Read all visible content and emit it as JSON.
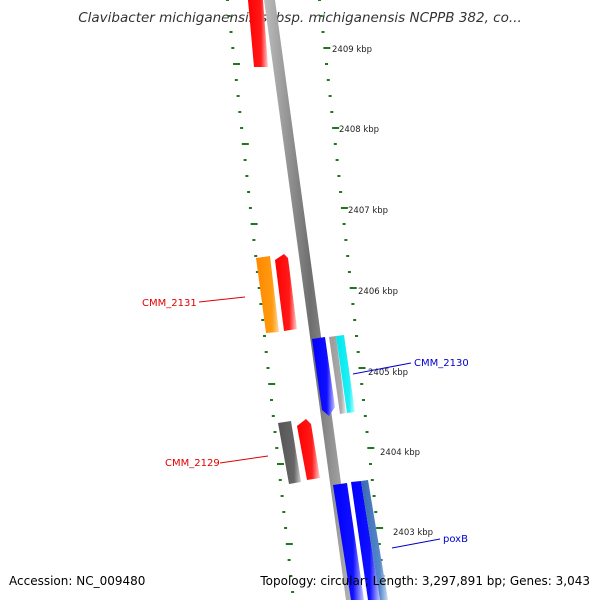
{
  "title": "Clavibacter michiganensis subsp. michiganensis NCPPB 382, co...",
  "footer": {
    "accession": "Accession: NC_009480",
    "summary": "Topology: circular; Length: 3,297,891 bp; Genes: 3,043"
  },
  "colors": {
    "tick": "#1b7a1b",
    "backbone": "#888888",
    "red_feature": "#ff0000",
    "orange_feature": "#ff8c00",
    "blue_feature": "#0000ff",
    "cyan_feature": "#00e5ee",
    "gray_feature": "#999999",
    "steel_feature": "#4a78b8",
    "label_red": "#e00000",
    "label_blue": "#0000cc"
  },
  "kbp_marks": [
    {
      "label": "2409 kbp"
    },
    {
      "label": "2408 kbp"
    },
    {
      "label": "2407 kbp"
    },
    {
      "label": "2406 kbp"
    },
    {
      "label": "2405 kbp"
    },
    {
      "label": "2404 kbp"
    },
    {
      "label": "2403 kbp"
    }
  ],
  "gene_labels": [
    {
      "name": "CMM_2131",
      "color": "red"
    },
    {
      "name": "CMM_2130",
      "color": "blue"
    },
    {
      "name": "CMM_2129",
      "color": "red"
    },
    {
      "name": "poxB",
      "color": "blue"
    }
  ]
}
